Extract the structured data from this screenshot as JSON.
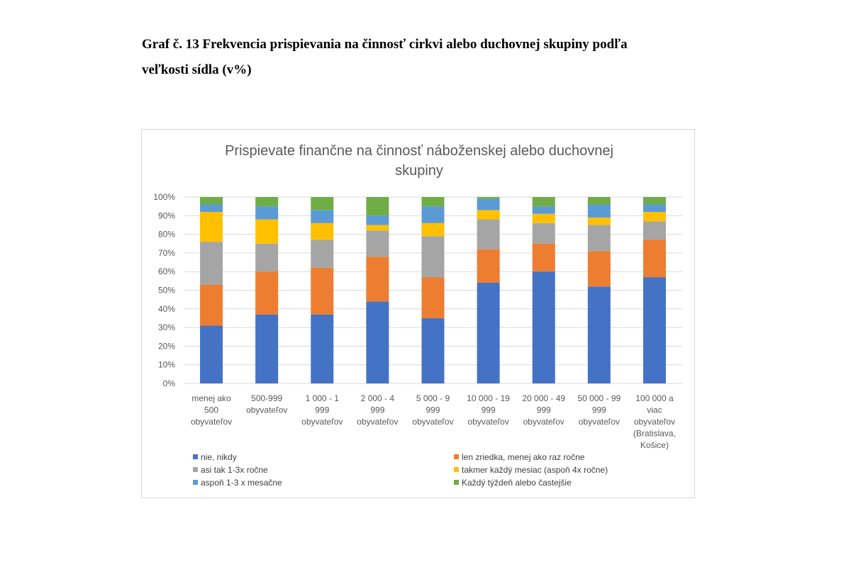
{
  "heading": {
    "line1": "Graf č. 13 Frekvencia prispievania na činnosť cirkvi alebo duchovnej skupiny podľa",
    "line2": "veľkosti sídla (v%)"
  },
  "chart_data": {
    "type": "bar",
    "stacked": true,
    "title": [
      "Prispievate finančne na činnosť náboženskej  alebo duchovnej",
      "skupiny"
    ],
    "xlabel": "",
    "ylabel": "",
    "ylim": [
      0,
      100
    ],
    "yticks": [
      "0%",
      "10%",
      "20%",
      "30%",
      "40%",
      "50%",
      "60%",
      "70%",
      "80%",
      "90%",
      "100%"
    ],
    "grid": true,
    "legend_position": "bottom",
    "categories": [
      [
        "menej ako",
        "500",
        "obyvateľov"
      ],
      [
        "500-999",
        "obyvateľov"
      ],
      [
        "1 000 - 1",
        "999",
        "obyvateľov"
      ],
      [
        "2 000 - 4",
        "999",
        "obyvateľov"
      ],
      [
        "5 000 - 9",
        "999",
        "obyvateľov"
      ],
      [
        "10 000 - 19",
        "999",
        "obyvateľov"
      ],
      [
        "20 000 - 49",
        "999",
        "obyvateľov"
      ],
      [
        "50 000 - 99",
        "999",
        "obyvateľov"
      ],
      [
        "100 000 a",
        "viac",
        "obyvateľov",
        "(Bratislava,",
        "Košice)"
      ]
    ],
    "series": [
      {
        "name": "nie, nikdy",
        "color": "#4472C4",
        "values": [
          31,
          37,
          37,
          44,
          35,
          54,
          60,
          52,
          57
        ]
      },
      {
        "name": "len zriedka, menej ako raz ročne",
        "color": "#ED7D31",
        "values": [
          22,
          23,
          25,
          24,
          22,
          18,
          15,
          19,
          20
        ]
      },
      {
        "name": "asi tak 1-3x ročne",
        "color": "#A5A5A5",
        "values": [
          23,
          15,
          15,
          14,
          22,
          16,
          11,
          14,
          10
        ]
      },
      {
        "name": "takmer každý mesiac (aspoň 4x ročne)",
        "color": "#FFC000",
        "values": [
          16,
          13,
          9,
          3,
          7,
          5,
          5,
          4,
          5
        ]
      },
      {
        "name": "aspoň 1-3 x mesačne",
        "color": "#5B9BD5",
        "values": [
          4,
          7,
          7,
          5,
          9,
          6,
          4,
          7,
          4
        ]
      },
      {
        "name": "Každý týždeň alebo častejšie",
        "color": "#70AD47",
        "values": [
          4,
          5,
          7,
          10,
          5,
          1,
          5,
          4,
          4
        ]
      }
    ]
  }
}
